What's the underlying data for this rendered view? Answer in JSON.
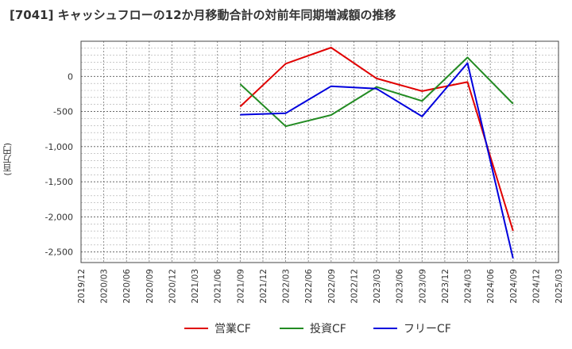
{
  "chart_data": {
    "type": "line",
    "title": "[7041]  キャッシュフローの12か月移動合計の対前年同期増減額の推移",
    "ylabel": "(百万円)",
    "xlabel": "",
    "ylim": [
      -2650,
      500
    ],
    "yticks": [
      0,
      -500,
      -1000,
      -1500,
      -2000,
      -2500
    ],
    "ytick_labels": [
      "0",
      "-500",
      "-1,000",
      "-1,500",
      "-2,000",
      "-2,500"
    ],
    "categories": [
      "2019/12",
      "2020/03",
      "2020/06",
      "2020/09",
      "2020/12",
      "2021/03",
      "2021/06",
      "2021/09",
      "2021/12",
      "2022/03",
      "2022/06",
      "2022/09",
      "2022/12",
      "2023/03",
      "2023/06",
      "2023/09",
      "2023/12",
      "2024/03",
      "2024/06",
      "2024/09",
      "2024/12",
      "2025/03"
    ],
    "series": [
      {
        "name": "営業CF",
        "color": "#e00000",
        "values": [
          null,
          null,
          null,
          null,
          null,
          null,
          null,
          -430,
          null,
          180,
          null,
          410,
          null,
          -30,
          null,
          -210,
          null,
          -80,
          null,
          -2200,
          null,
          null
        ]
      },
      {
        "name": "投資CF",
        "color": "#228b22",
        "values": [
          null,
          null,
          null,
          null,
          null,
          null,
          null,
          -110,
          null,
          -710,
          null,
          -550,
          null,
          -150,
          null,
          -350,
          null,
          270,
          null,
          -390,
          null,
          null
        ]
      },
      {
        "name": "フリーCF",
        "color": "#0000dd",
        "values": [
          null,
          null,
          null,
          null,
          null,
          null,
          null,
          -545,
          null,
          -525,
          null,
          -140,
          null,
          -175,
          null,
          -570,
          null,
          190,
          null,
          -2590,
          null,
          null
        ]
      }
    ],
    "legend": "bottom",
    "grid": true
  }
}
